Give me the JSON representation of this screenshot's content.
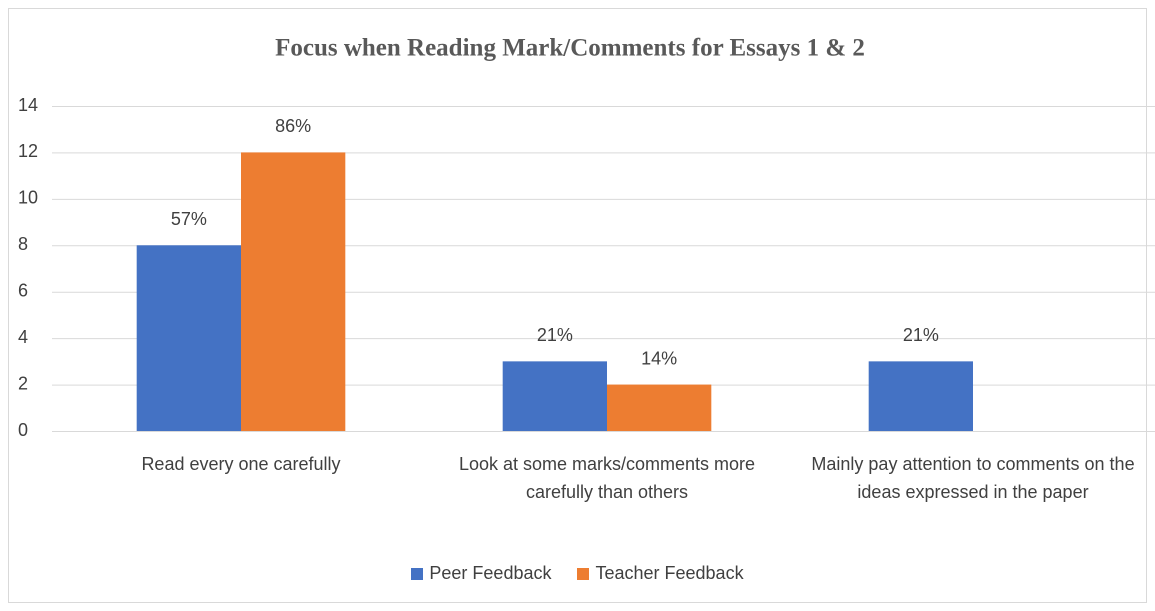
{
  "chart_data": {
    "type": "bar",
    "title": "Focus when Reading Mark/Comments for Essays 1 & 2",
    "categories": [
      "Read every one carefully",
      "Look at some marks/comments more carefully than others",
      "Mainly pay attention to comments on the ideas expressed in the paper"
    ],
    "series": [
      {
        "name": "Peer Feedback",
        "color": "#4472c4",
        "values": [
          8,
          3,
          3
        ],
        "value_labels": [
          "57%",
          "21%",
          "21%"
        ]
      },
      {
        "name": "Teacher Feedback",
        "color": "#ed7d31",
        "values": [
          12,
          2,
          0
        ],
        "value_labels": [
          "86%",
          "14%",
          null
        ]
      }
    ],
    "ylim": [
      0,
      14
    ],
    "yticks": [
      0,
      2,
      4,
      6,
      8,
      10,
      12,
      14
    ],
    "grid": true,
    "legend": "bottom"
  }
}
